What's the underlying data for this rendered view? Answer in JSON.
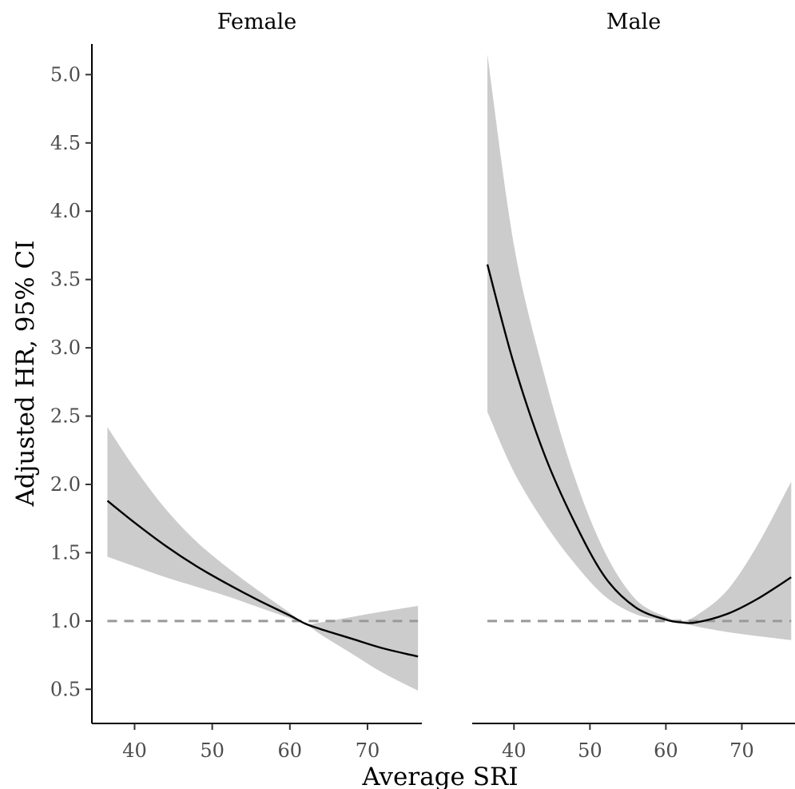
{
  "chart_data": {
    "type": "line",
    "x_label": "Average SRI",
    "y_label": "Adjusted HR, 95% CI",
    "xlim": [
      34.5,
      77
    ],
    "ylim": [
      0.25,
      5.4
    ],
    "x_ticks": [
      40,
      50,
      60,
      70
    ],
    "y_ticks": [
      0.5,
      1.0,
      1.5,
      2.0,
      2.5,
      3.0,
      3.5,
      4.0,
      4.5,
      5.0
    ],
    "y_tick_labels": [
      "0.5",
      "1.0",
      "1.5",
      "2.0",
      "2.5",
      "3.0",
      "3.5",
      "4.0",
      "4.5",
      "5.0"
    ],
    "reference_line": 1.0,
    "grid": false,
    "colors": {
      "line": "#000000",
      "ribbon": "#cccccc",
      "reference": "#999999",
      "tick_text": "#4d4d4d",
      "title_text": "#000000"
    },
    "panels": [
      {
        "title": "Female",
        "x": [
          36.5,
          40,
          44,
          48,
          52,
          56,
          60,
          62,
          64,
          68,
          72,
          76.5
        ],
        "hr": [
          1.88,
          1.72,
          1.55,
          1.4,
          1.27,
          1.15,
          1.04,
          0.98,
          0.94,
          0.87,
          0.8,
          0.74
        ],
        "lower": [
          1.47,
          1.4,
          1.32,
          1.25,
          1.18,
          1.1,
          1.02,
          0.98,
          0.9,
          0.76,
          0.62,
          0.49
        ],
        "upper": [
          2.42,
          2.12,
          1.82,
          1.58,
          1.39,
          1.22,
          1.06,
          0.98,
          0.99,
          1.03,
          1.07,
          1.11
        ]
      },
      {
        "title": "Male",
        "x": [
          36.5,
          40,
          44,
          48,
          52,
          56,
          60,
          62,
          64,
          68,
          72,
          76.5
        ],
        "hr": [
          3.61,
          2.88,
          2.22,
          1.72,
          1.32,
          1.1,
          1.01,
          0.99,
          0.99,
          1.05,
          1.16,
          1.32
        ],
        "lower": [
          2.53,
          2.09,
          1.72,
          1.42,
          1.18,
          1.05,
          1.0,
          0.99,
          0.96,
          0.92,
          0.89,
          0.86
        ],
        "upper": [
          5.15,
          3.75,
          2.8,
          2.05,
          1.5,
          1.16,
          1.03,
          1.0,
          1.04,
          1.22,
          1.55,
          2.02
        ]
      }
    ]
  }
}
